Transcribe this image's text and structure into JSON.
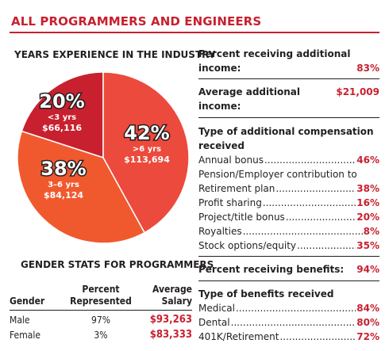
{
  "page_title": "ALL PROGRAMMERS AND ENGINEERS",
  "colors": {
    "accent": "#c8202f",
    "slice_20": "#c8202f",
    "slice_42": "#ec4a3c",
    "slice_38": "#f0592e"
  },
  "pie_heading": "YEARS EXPERIENCE IN THE INDUSTRY",
  "chart_data": [
    {
      "type": "pie",
      "title": "YEARS EXPERIENCE IN THE INDUSTRY",
      "slices": [
        {
          "pct_label": "20%",
          "value": 20,
          "range": "<3 yrs",
          "salary": "$66,116",
          "color": "#c8202f"
        },
        {
          "pct_label": "42%",
          "value": 42,
          "range": ">6 yrs",
          "salary": "$113,694",
          "color": "#ec4a3c"
        },
        {
          "pct_label": "38%",
          "value": 38,
          "range": "3–6 yrs",
          "salary": "$84,124",
          "color": "#f0592e"
        }
      ]
    },
    {
      "type": "table",
      "title": "GENDER STATS FOR PROGRAMMERS",
      "columns": [
        "Gender",
        "Percent Represented",
        "Average Salary"
      ],
      "rows": [
        [
          "Male",
          "97%",
          "$93,263"
        ],
        [
          "Female",
          "3%",
          "$83,333"
        ]
      ]
    }
  ],
  "gender": {
    "heading": "GENDER STATS FOR PROGRAMMERS",
    "col_gender": "Gender",
    "col_pct_1": "Percent",
    "col_pct_2": "Represented",
    "col_sal_1": "Average",
    "col_sal_2": "Salary",
    "rows": [
      {
        "gender": "Male",
        "pct": "97%",
        "salary": "$93,263"
      },
      {
        "gender": "Female",
        "pct": "3%",
        "salary": "$83,333"
      }
    ]
  },
  "stats": {
    "add_income_1": "Percent receiving additional",
    "add_income_2": "income:",
    "add_income_val": "83%",
    "avg_add_label": "Average additional income:",
    "avg_add_val": "$21,009",
    "comp_heading_1": "Type of additional compensation",
    "comp_heading_2": "received",
    "comp": [
      {
        "label": "Annual bonus",
        "val": "46%"
      },
      {
        "label": "Pension/Employer contribution to",
        "label_cont": "Retirement plan",
        "val": "38%"
      },
      {
        "label": "Profit sharing",
        "val": "16%"
      },
      {
        "label": "Project/title bonus",
        "val": "20%"
      },
      {
        "label": "Royalties",
        "val": "8%"
      },
      {
        "label": "Stock options/equity",
        "val": "35%"
      }
    ],
    "benefits_label": "Percent receiving benefits:",
    "benefits_val": "94%",
    "benefit_heading": "Type of benefits received",
    "benefits": [
      {
        "label": "Medical",
        "val": "84%"
      },
      {
        "label": "Dental",
        "val": "80%"
      },
      {
        "label": "401K/Retirement",
        "val": "72%"
      }
    ]
  }
}
